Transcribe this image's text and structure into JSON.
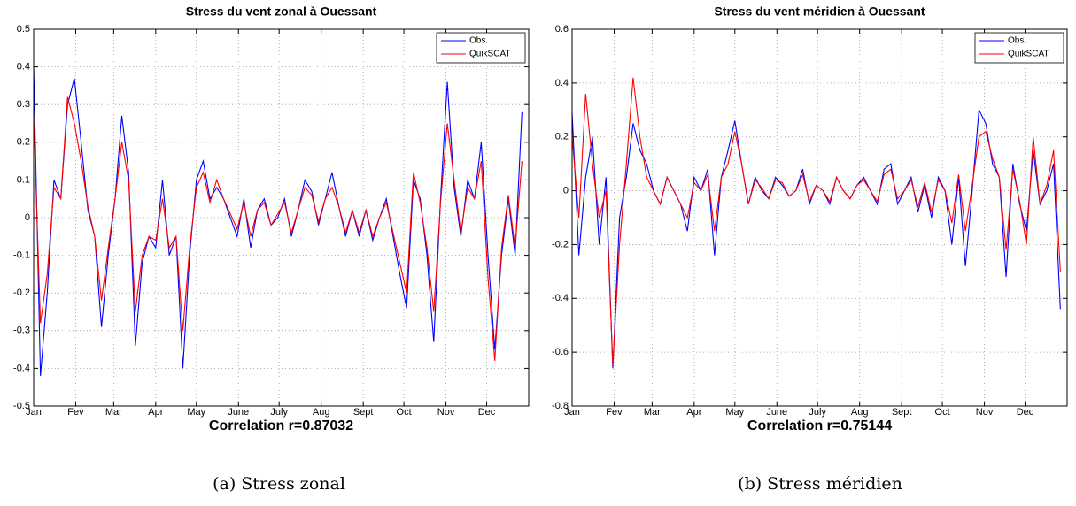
{
  "chart_data": [
    {
      "type": "line",
      "title": "Stress du vent zonal à Ouessant",
      "xlabel": "Correlation r=0.87032",
      "x": [
        1,
        6,
        11,
        16,
        21,
        26,
        31,
        36,
        41,
        46,
        51,
        56,
        61,
        66,
        71,
        76,
        81,
        86,
        91,
        96,
        101,
        106,
        111,
        116,
        121,
        126,
        131,
        136,
        141,
        146,
        151,
        156,
        161,
        166,
        171,
        176,
        181,
        186,
        191,
        196,
        201,
        206,
        211,
        216,
        221,
        226,
        231,
        236,
        241,
        246,
        251,
        256,
        261,
        266,
        271,
        276,
        281,
        286,
        291,
        296,
        301,
        306,
        311,
        316,
        321,
        326,
        331,
        336,
        341,
        346,
        351,
        356,
        361
      ],
      "series": [
        {
          "name": "Obs.",
          "color": "#0000ff",
          "values": [
            0.4,
            -0.42,
            -0.2,
            0.1,
            0.05,
            0.3,
            0.37,
            0.2,
            0.02,
            -0.05,
            -0.29,
            -0.1,
            0.05,
            0.27,
            0.12,
            -0.34,
            -0.12,
            -0.05,
            -0.08,
            0.1,
            -0.1,
            -0.05,
            -0.4,
            -0.1,
            0.1,
            0.15,
            0.05,
            0.08,
            0.05,
            0,
            -0.05,
            0.05,
            -0.08,
            0.02,
            0.05,
            -0.02,
            0,
            0.05,
            -0.05,
            0.02,
            0.1,
            0.07,
            -0.02,
            0.05,
            0.12,
            0.03,
            -0.05,
            0.02,
            -0.05,
            0.02,
            -0.06,
            0,
            0.05,
            -0.05,
            -0.15,
            -0.24,
            0.1,
            0.05,
            -0.1,
            -0.33,
            0.05,
            0.36,
            0.08,
            -0.05,
            0.1,
            0.05,
            0.2,
            -0.1,
            -0.35,
            -0.1,
            0.05,
            -0.1,
            0.28
          ]
        },
        {
          "name": "QuikSCAT",
          "color": "#ff0000",
          "values": [
            0.27,
            -0.28,
            -0.15,
            0.08,
            0.05,
            0.32,
            0.25,
            0.15,
            0.03,
            -0.05,
            -0.22,
            -0.08,
            0.05,
            0.2,
            0.1,
            -0.25,
            -0.1,
            -0.05,
            -0.06,
            0.05,
            -0.08,
            -0.05,
            -0.3,
            -0.08,
            0.08,
            0.12,
            0.04,
            0.1,
            0.05,
            0.01,
            -0.03,
            0.04,
            -0.05,
            0.02,
            0.04,
            -0.02,
            0.01,
            0.04,
            -0.04,
            0.02,
            0.08,
            0.06,
            -0.01,
            0.05,
            0.08,
            0.03,
            -0.04,
            0.02,
            -0.04,
            0.02,
            -0.05,
            0,
            0.04,
            -0.04,
            -0.12,
            -0.2,
            0.12,
            0.04,
            -0.08,
            -0.25,
            0.04,
            0.25,
            0.1,
            -0.04,
            0.08,
            0.05,
            0.15,
            -0.16,
            -0.38,
            -0.08,
            0.06,
            -0.08,
            0.15
          ]
        }
      ],
      "xlim": [
        1,
        366
      ],
      "ylim": [
        -0.5,
        0.5
      ],
      "xticks": [
        {
          "value": 1,
          "label": "Jan"
        },
        {
          "value": 32,
          "label": "Fev"
        },
        {
          "value": 60,
          "label": "Mar"
        },
        {
          "value": 91,
          "label": "Apr"
        },
        {
          "value": 121,
          "label": "May"
        },
        {
          "value": 152,
          "label": "June"
        },
        {
          "value": 182,
          "label": "July"
        },
        {
          "value": 213,
          "label": "Aug"
        },
        {
          "value": 244,
          "label": "Sept"
        },
        {
          "value": 274,
          "label": "Oct"
        },
        {
          "value": 305,
          "label": "Nov"
        },
        {
          "value": 335,
          "label": "Dec"
        }
      ],
      "yticks": [
        -0.5,
        -0.4,
        -0.3,
        -0.2,
        -0.1,
        0,
        0.1,
        0.2,
        0.3,
        0.4,
        0.5
      ],
      "grid": true,
      "legend": "upper right"
    },
    {
      "type": "line",
      "title": "Stress du vent méridien à Ouessant",
      "xlabel": "Correlation r=0.75144",
      "x": [
        1,
        6,
        11,
        16,
        21,
        26,
        31,
        36,
        41,
        46,
        51,
        56,
        61,
        66,
        71,
        76,
        81,
        86,
        91,
        96,
        101,
        106,
        111,
        116,
        121,
        126,
        131,
        136,
        141,
        146,
        151,
        156,
        161,
        166,
        171,
        176,
        181,
        186,
        191,
        196,
        201,
        206,
        211,
        216,
        221,
        226,
        231,
        236,
        241,
        246,
        251,
        256,
        261,
        266,
        271,
        276,
        281,
        286,
        291,
        296,
        301,
        306,
        311,
        316,
        321,
        326,
        331,
        336,
        341,
        346,
        351,
        356,
        361
      ],
      "series": [
        {
          "name": "Obs.",
          "color": "#0000ff",
          "values": [
            0.29,
            -0.24,
            0.05,
            0.2,
            -0.2,
            0.05,
            -0.66,
            -0.1,
            0.05,
            0.25,
            0.15,
            0.1,
            0,
            -0.05,
            0.05,
            0,
            -0.05,
            -0.15,
            0.05,
            0,
            0.08,
            -0.24,
            0.05,
            0.15,
            0.26,
            0.1,
            -0.05,
            0.05,
            0,
            -0.03,
            0.05,
            0.02,
            -0.02,
            0,
            0.08,
            -0.05,
            0.02,
            0,
            -0.05,
            0.05,
            0,
            -0.03,
            0.02,
            0.05,
            0,
            -0.05,
            0.08,
            0.1,
            -0.05,
            0,
            0.05,
            -0.08,
            0.02,
            -0.1,
            0.05,
            0,
            -0.2,
            0.05,
            -0.28,
            0,
            0.3,
            0.25,
            0.1,
            0.05,
            -0.32,
            0.1,
            -0.05,
            -0.15,
            0.15,
            -0.05,
            0,
            0.1,
            -0.44
          ]
        },
        {
          "name": "QuikSCAT",
          "color": "#ff0000",
          "values": [
            0.2,
            -0.1,
            0.36,
            0.1,
            -0.1,
            0,
            -0.65,
            -0.2,
            0.1,
            0.42,
            0.2,
            0.05,
            0,
            -0.05,
            0.05,
            0,
            -0.05,
            -0.1,
            0.03,
            0,
            0.06,
            -0.15,
            0.05,
            0.1,
            0.22,
            0.1,
            -0.05,
            0.04,
            0.01,
            -0.03,
            0.04,
            0.03,
            -0.02,
            0,
            0.06,
            -0.04,
            0.02,
            0,
            -0.04,
            0.05,
            0,
            -0.03,
            0.02,
            0.04,
            0,
            -0.04,
            0.06,
            0.08,
            -0.03,
            0,
            0.04,
            -0.06,
            0.03,
            -0.08,
            0.04,
            0,
            -0.12,
            0.06,
            -0.15,
            0.02,
            0.2,
            0.22,
            0.12,
            0.05,
            -0.22,
            0.08,
            -0.04,
            -0.2,
            0.2,
            -0.05,
            0.02,
            0.15,
            -0.3
          ]
        }
      ],
      "xlim": [
        1,
        366
      ],
      "ylim": [
        -0.8,
        0.6
      ],
      "xticks": [
        {
          "value": 1,
          "label": "Jan"
        },
        {
          "value": 32,
          "label": "Fev"
        },
        {
          "value": 60,
          "label": "Mar"
        },
        {
          "value": 91,
          "label": "Apr"
        },
        {
          "value": 121,
          "label": "May"
        },
        {
          "value": 152,
          "label": "June"
        },
        {
          "value": 182,
          "label": "July"
        },
        {
          "value": 213,
          "label": "Aug"
        },
        {
          "value": 244,
          "label": "Sept"
        },
        {
          "value": 274,
          "label": "Oct"
        },
        {
          "value": 305,
          "label": "Nov"
        },
        {
          "value": 335,
          "label": "Dec"
        }
      ],
      "yticks": [
        -0.8,
        -0.6,
        -0.4,
        -0.2,
        0,
        0.2,
        0.4,
        0.6
      ],
      "grid": true,
      "legend": "upper right"
    }
  ],
  "captions": [
    "(a) Stress zonal",
    "(b) Stress méridien"
  ]
}
